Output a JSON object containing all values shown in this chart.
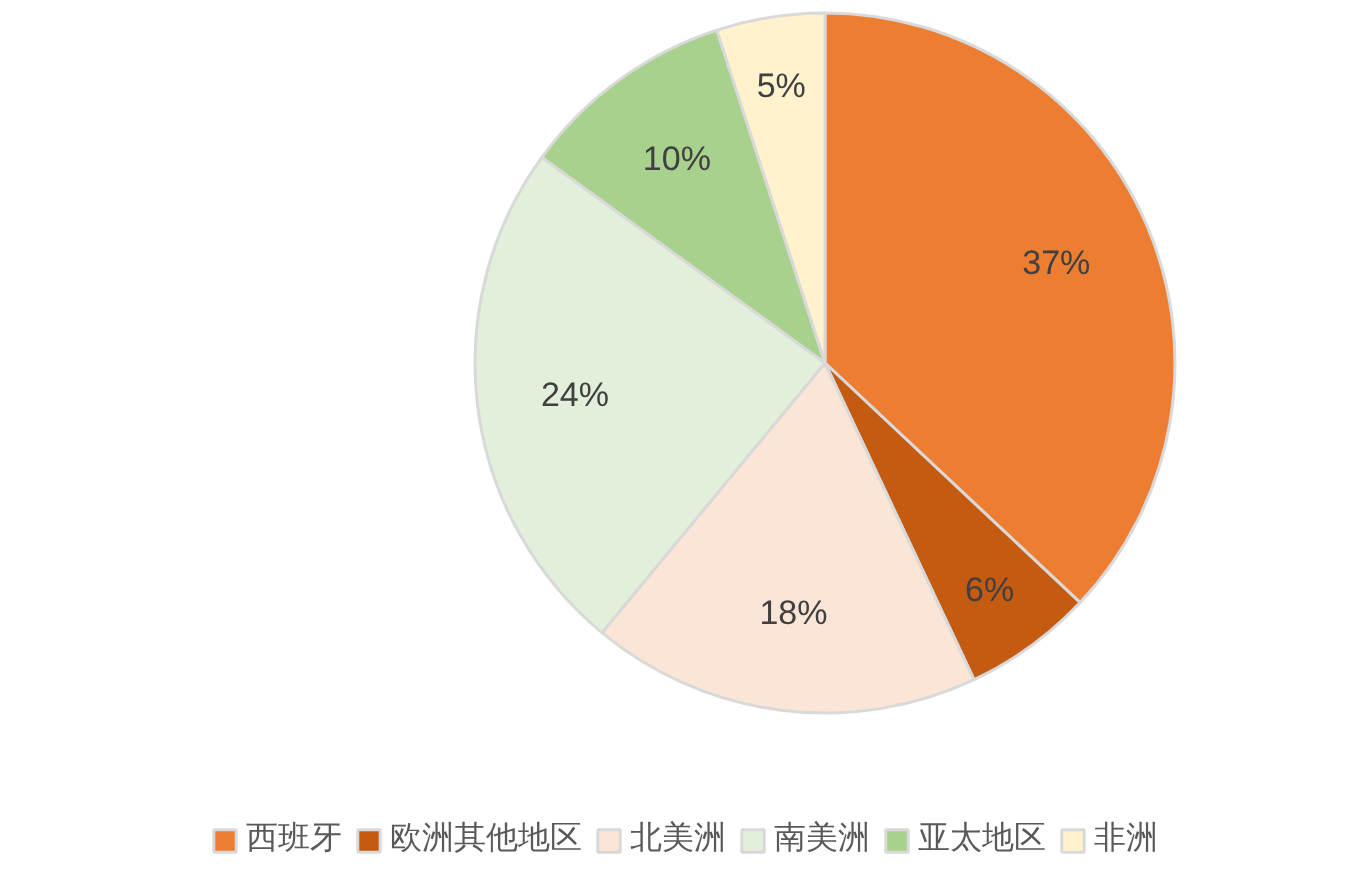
{
  "chart_data": {
    "type": "pie",
    "categories": [
      "西班牙",
      "欧洲其他地区",
      "北美洲",
      "南美洲",
      "亚太地区",
      "非洲"
    ],
    "values": [
      37,
      6,
      18,
      24,
      10,
      5
    ],
    "colors": [
      "#ed7d31",
      "#c55a11",
      "#fbe5d6",
      "#e2efda",
      "#a9d18e",
      "#fff2cc"
    ],
    "value_labels": [
      "37%",
      "6%",
      "18%",
      "24%",
      "10%",
      "5%"
    ],
    "legend": "bottom"
  }
}
